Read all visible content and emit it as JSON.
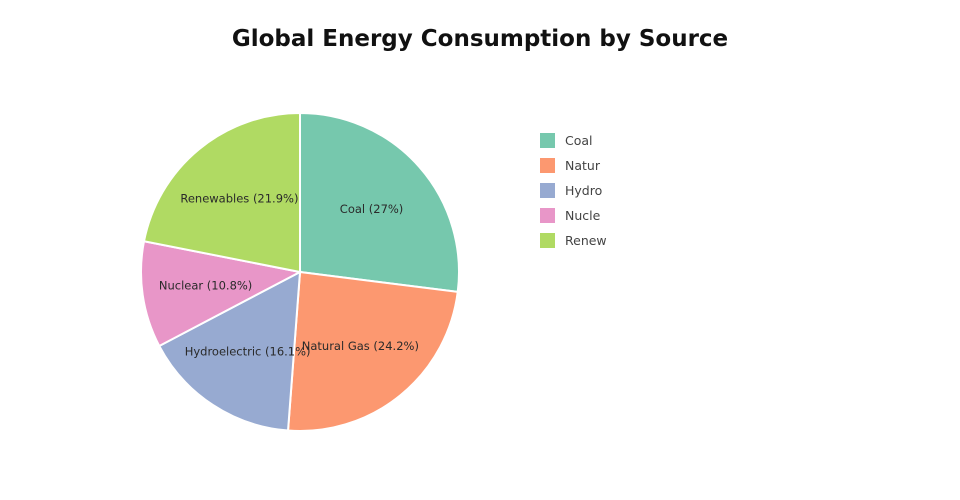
{
  "chart_data": {
    "type": "pie",
    "title": "Global Energy Consumption by Source",
    "categories": [
      "Coal",
      "Natural Gas",
      "Hydroelectric",
      "Nuclear",
      "Renewables"
    ],
    "values": [
      27,
      24.2,
      16.1,
      10.8,
      21.9
    ],
    "slice_labels": [
      "Coal (27%)",
      "Natural Gas (24.2%)",
      "Hydroelectric (16.1%)",
      "Nuclear (10.8%)",
      "Renewables (21.9%)"
    ],
    "colors": [
      "#76c8ad",
      "#fc9870",
      "#97aad1",
      "#e896c8",
      "#b0da63"
    ],
    "legend": {
      "position": "right",
      "entries": [
        "Coal",
        "Natur",
        "Hydro",
        "Nucle",
        "Renew"
      ]
    },
    "start_angle": "top",
    "direction": "clockwise"
  }
}
